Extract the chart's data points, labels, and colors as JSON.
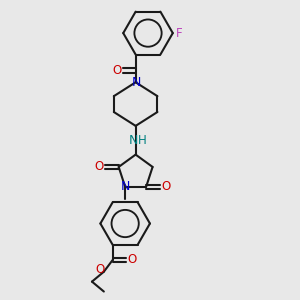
{
  "background_color": "#e8e8e8",
  "bond_color": "#1a1a1a",
  "N_color": "#0000cc",
  "O_color": "#cc0000",
  "F_color": "#bb44bb",
  "NH_color": "#008080",
  "lw": 1.5,
  "figsize": [
    3.0,
    3.0
  ],
  "dpi": 100,
  "xlim": [
    0,
    300
  ],
  "ylim": [
    0,
    300
  ],
  "font_size": 8.5
}
